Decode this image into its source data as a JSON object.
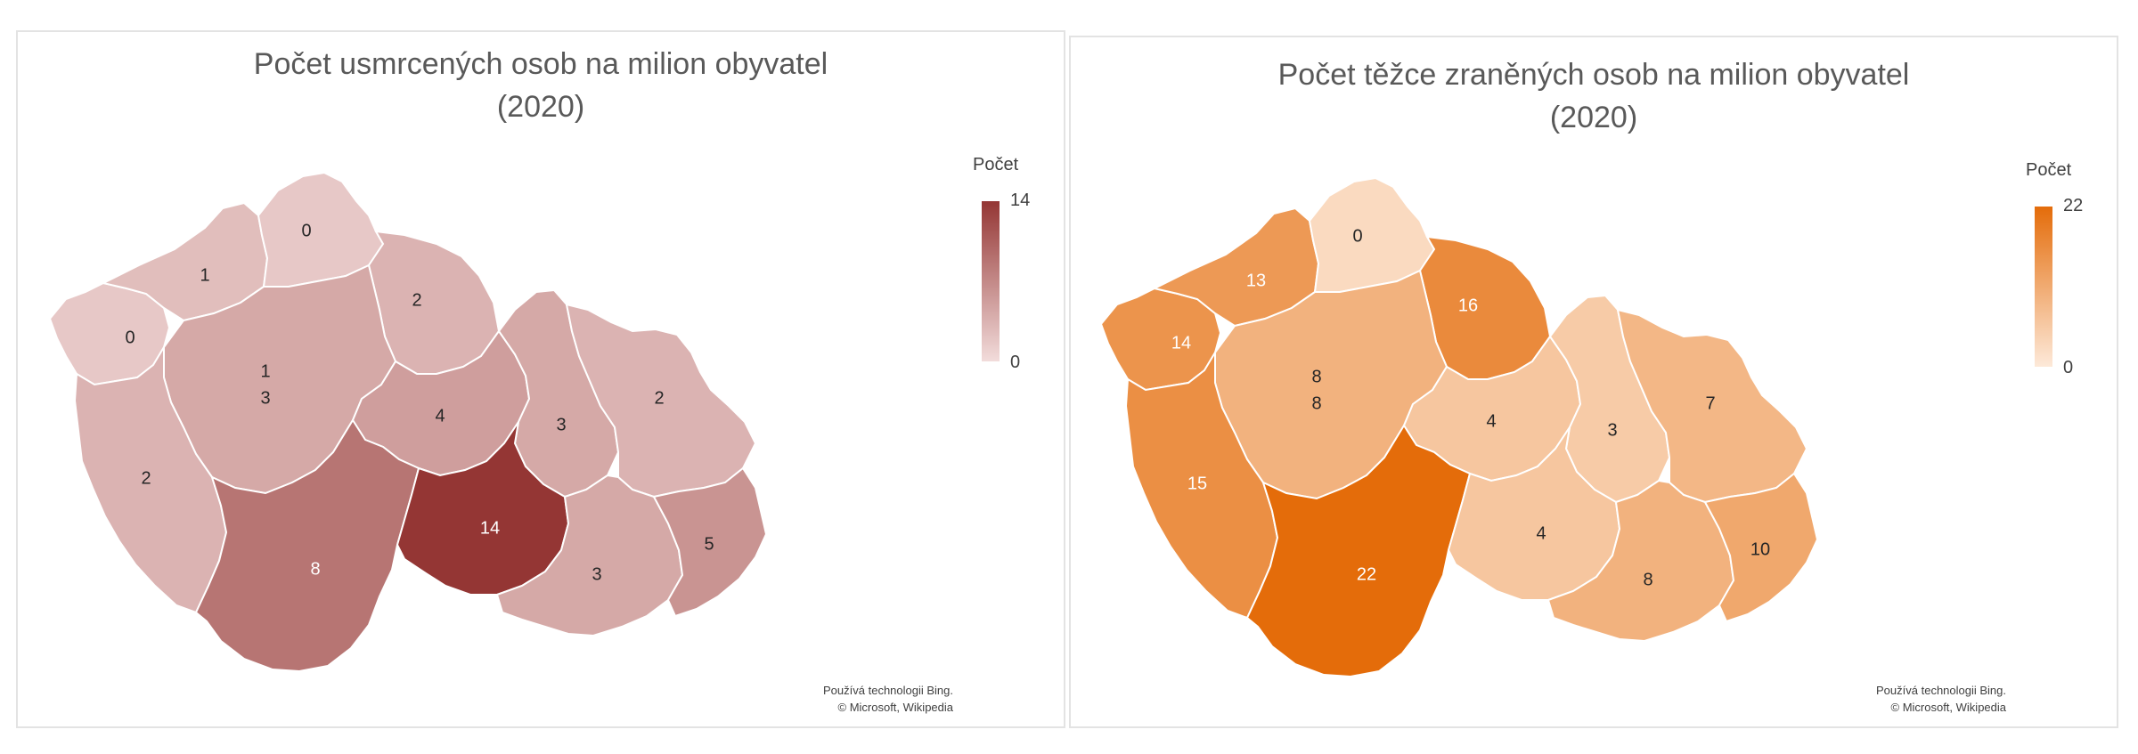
{
  "maps": [
    {
      "title_line1": "Počet usmrcených osob na milion obyvatel",
      "title_line2": "(2020)",
      "legend": {
        "title": "Počet",
        "max": "14",
        "min": "0",
        "color_max": "#943634",
        "color_min": "#f2dcdb"
      },
      "credit_line1": "Používá technologii Bing.",
      "credit_line2": "© Microsoft, Wikipedia",
      "regions": [
        {
          "key": "karlovarsky",
          "value": 0
        },
        {
          "key": "ustecky",
          "value": 1
        },
        {
          "key": "liberecky",
          "value": 0
        },
        {
          "key": "kralovehradecky",
          "value": 2
        },
        {
          "key": "praha",
          "value": 1
        },
        {
          "key": "stredocesky",
          "value": 3
        },
        {
          "key": "plzensky",
          "value": 2
        },
        {
          "key": "pardubicky",
          "value": 4
        },
        {
          "key": "olomoucky",
          "value": 3
        },
        {
          "key": "moravskoslezsky",
          "value": 2
        },
        {
          "key": "jihocesky",
          "value": 8
        },
        {
          "key": "vysocina",
          "value": 14
        },
        {
          "key": "jihomoravsky",
          "value": 3
        },
        {
          "key": "zlinsky",
          "value": 5
        }
      ]
    },
    {
      "title_line1": "Počet těžce zraněných osob na milion obyvatel",
      "title_line2": "(2020)",
      "legend": {
        "title": "Počet",
        "max": "22",
        "min": "0",
        "color_max": "#e46c0a",
        "color_min": "#fde9d9"
      },
      "credit_line1": "Používá technologii Bing.",
      "credit_line2": "© Microsoft, Wikipedia",
      "regions": [
        {
          "key": "karlovarsky",
          "value": 14
        },
        {
          "key": "ustecky",
          "value": 13
        },
        {
          "key": "liberecky",
          "value": 0
        },
        {
          "key": "kralovehradecky",
          "value": 16
        },
        {
          "key": "praha",
          "value": 8
        },
        {
          "key": "stredocesky",
          "value": 8
        },
        {
          "key": "plzensky",
          "value": 15
        },
        {
          "key": "pardubicky",
          "value": 4
        },
        {
          "key": "olomoucky",
          "value": 3
        },
        {
          "key": "moravskoslezsky",
          "value": 7
        },
        {
          "key": "jihocesky",
          "value": 22
        },
        {
          "key": "vysocina",
          "value": 4
        },
        {
          "key": "jihomoravsky",
          "value": 8
        },
        {
          "key": "zlinsky",
          "value": 10
        }
      ]
    }
  ]
}
